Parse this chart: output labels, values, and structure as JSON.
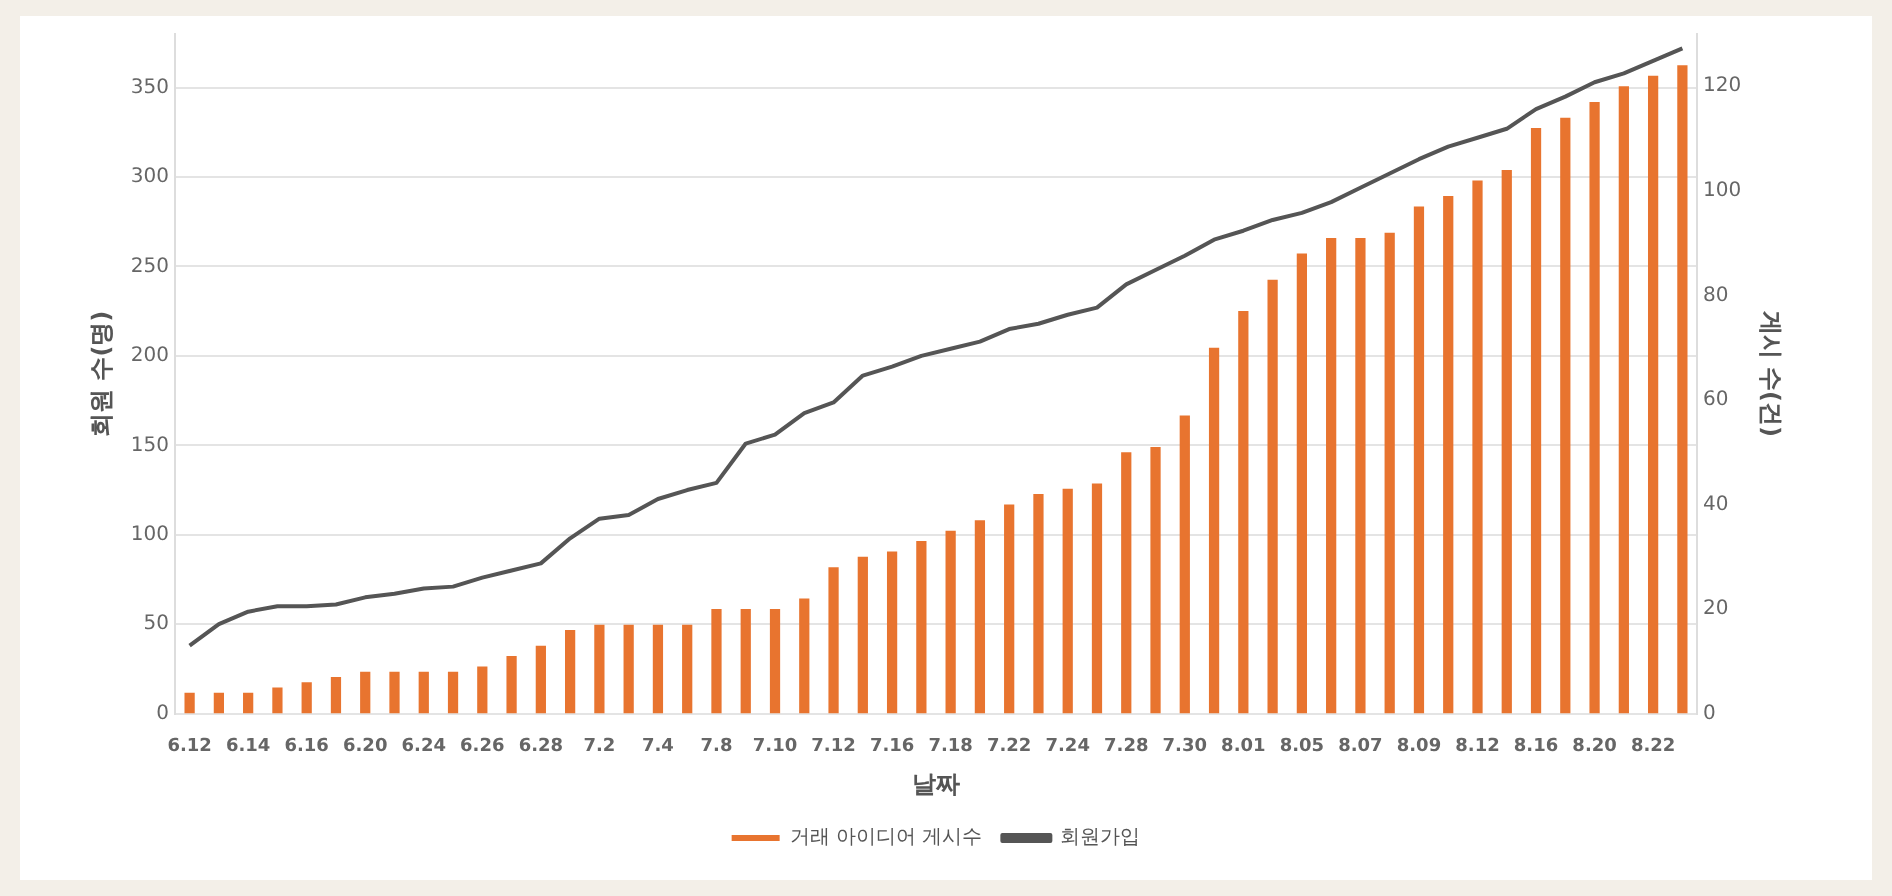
{
  "chart_data": {
    "type": "bar",
    "xlabel": "날짜",
    "ylabel": "회원 수(명)",
    "y2label": "게시 수(건)",
    "categories": [
      "6.12",
      null,
      "6.14",
      null,
      "6.16",
      null,
      "6.20",
      null,
      "6.24",
      null,
      "6.26",
      null,
      "6.28",
      null,
      "7.2",
      null,
      "7.4",
      null,
      "7.8",
      null,
      "7.10",
      null,
      "7.12",
      null,
      "7.16",
      null,
      "7.18",
      null,
      "7.22",
      null,
      "7.24",
      null,
      "7.28",
      null,
      "7.30",
      null,
      "8.01",
      null,
      "8.05",
      null,
      "8.07",
      null,
      "8.09",
      null,
      "8.12",
      null,
      "8.16",
      null,
      "8.20",
      null,
      "8.22",
      null
    ],
    "series": [
      {
        "name": "거래 아이디어 게시수",
        "axis": "y2",
        "color": "#e8742f",
        "values": [
          4,
          4,
          4,
          5,
          6,
          7,
          8,
          8,
          8,
          8,
          9,
          11,
          13,
          16,
          17,
          17,
          17,
          17,
          20,
          20,
          20,
          22,
          28,
          30,
          31,
          33,
          35,
          37,
          40,
          42,
          43,
          44,
          50,
          51,
          57,
          70,
          77,
          83,
          88,
          91,
          91,
          92,
          97,
          99,
          102,
          104,
          112,
          114,
          117,
          120,
          122,
          124
        ]
      },
      {
        "name": "회원가입",
        "type": "line",
        "color": "#555555",
        "values": [
          38,
          50,
          57,
          60,
          60,
          61,
          65,
          67,
          70,
          71,
          76,
          80,
          84,
          98,
          109,
          111,
          120,
          125,
          129,
          151,
          156,
          168,
          174,
          189,
          194,
          200,
          204,
          208,
          215,
          218,
          223,
          227,
          240,
          248,
          256,
          265,
          270,
          276,
          280,
          286,
          294,
          302,
          310,
          317,
          322,
          327,
          338,
          345,
          353,
          358,
          365,
          372
        ]
      }
    ],
    "ylim": [
      0,
      380
    ],
    "yticks": [
      0,
      50,
      100,
      150,
      200,
      250,
      300,
      350
    ],
    "y2lim": [
      0,
      130
    ],
    "y2ticks": [
      0,
      20,
      40,
      60,
      80,
      100,
      120
    ],
    "grid": "y",
    "legend": "bottom",
    "marker": "none"
  }
}
